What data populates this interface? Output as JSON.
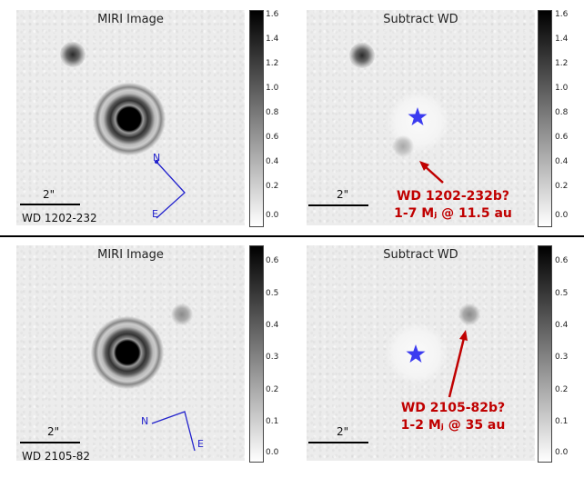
{
  "panels": {
    "top_left": {
      "title": "MIRI Image",
      "target": "WD 1202-232",
      "scale_label": "2\""
    },
    "top_right": {
      "title": "Subtract WD",
      "scale_label": "2\""
    },
    "bottom_left": {
      "title": "MIRI Image",
      "target": "WD 2105-82",
      "scale_label": "2\""
    },
    "bottom_right": {
      "title": "Subtract WD",
      "scale_label": "2\""
    }
  },
  "compass": {
    "north": "N",
    "east": "E"
  },
  "colorbar_top": {
    "ticks": [
      "1.6",
      "1.4",
      "1.2",
      "1.0",
      "0.8",
      "0.6",
      "0.4",
      "0.2",
      "0.0"
    ]
  },
  "colorbar_bottom": {
    "ticks": [
      "0.6",
      "0.5",
      "0.4",
      "0.3",
      "0.2",
      "0.1",
      "0.0"
    ]
  },
  "annotations": {
    "top": {
      "line1": "WD 1202-232b?",
      "line2": "1-7 Mⱼ @ 11.5 au"
    },
    "bottom": {
      "line1": "WD 2105-82b?",
      "line2": "1-2 Mⱼ @ 35 au"
    }
  },
  "colors": {
    "annotation": "#c00000",
    "star": "#3b3bf0",
    "compass": "#2222cc"
  }
}
